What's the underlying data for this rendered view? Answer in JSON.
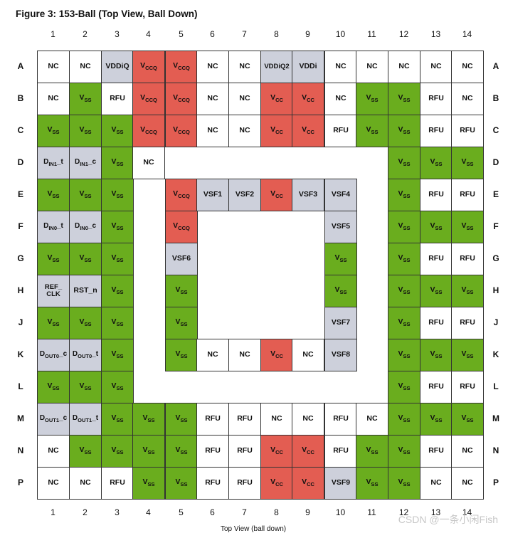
{
  "title": "Figure 3: 153-Ball (Top View, Ball Down)",
  "columns": [
    "1",
    "2",
    "3",
    "4",
    "5",
    "6",
    "7",
    "8",
    "9",
    "10",
    "11",
    "12",
    "13",
    "14"
  ],
  "rows": [
    "A",
    "B",
    "C",
    "D",
    "E",
    "F",
    "G",
    "H",
    "J",
    "K",
    "L",
    "M",
    "N",
    "P"
  ],
  "footer": "Top View (ball down)",
  "watermark": "CSDN @一条小闲Fish",
  "colors": {
    "green": "#6aad1e",
    "red": "#e35d52",
    "gray": "#cdd0db",
    "white": "#ffffff"
  },
  "grid": [
    [
      {
        "t": "w",
        "l": "NC"
      },
      {
        "t": "w",
        "l": "NC"
      },
      {
        "t": "g",
        "l": "VDDiQ"
      },
      {
        "t": "r",
        "b": "V",
        "s": "CCQ"
      },
      {
        "t": "r",
        "b": "V",
        "s": "CCQ"
      },
      {
        "t": "w",
        "l": "NC"
      },
      {
        "t": "w",
        "l": "NC"
      },
      {
        "t": "g",
        "l": "VDDiQ2"
      },
      {
        "t": "g",
        "l": "VDDi"
      },
      {
        "t": "w",
        "l": "NC"
      },
      {
        "t": "w",
        "l": "NC"
      },
      {
        "t": "w",
        "l": "NC"
      },
      {
        "t": "w",
        "l": "NC"
      },
      {
        "t": "w",
        "l": "NC"
      }
    ],
    [
      {
        "t": "w",
        "l": "NC"
      },
      {
        "t": "G",
        "b": "V",
        "s": "SS"
      },
      {
        "t": "w",
        "l": "RFU"
      },
      {
        "t": "r",
        "b": "V",
        "s": "CCQ"
      },
      {
        "t": "r",
        "b": "V",
        "s": "CCQ"
      },
      {
        "t": "w",
        "l": "NC"
      },
      {
        "t": "w",
        "l": "NC"
      },
      {
        "t": "r",
        "b": "V",
        "s": "CC"
      },
      {
        "t": "r",
        "b": "V",
        "s": "CC"
      },
      {
        "t": "w",
        "l": "NC"
      },
      {
        "t": "G",
        "b": "V",
        "s": "SS"
      },
      {
        "t": "G",
        "b": "V",
        "s": "SS"
      },
      {
        "t": "w",
        "l": "RFU"
      },
      {
        "t": "w",
        "l": "NC"
      }
    ],
    [
      {
        "t": "G",
        "b": "V",
        "s": "SS"
      },
      {
        "t": "G",
        "b": "V",
        "s": "SS"
      },
      {
        "t": "G",
        "b": "V",
        "s": "SS"
      },
      {
        "t": "r",
        "b": "V",
        "s": "CCQ"
      },
      {
        "t": "r",
        "b": "V",
        "s": "CCQ"
      },
      {
        "t": "w",
        "l": "NC"
      },
      {
        "t": "w",
        "l": "NC"
      },
      {
        "t": "r",
        "b": "V",
        "s": "CC"
      },
      {
        "t": "r",
        "b": "V",
        "s": "CC"
      },
      {
        "t": "w",
        "l": "RFU"
      },
      {
        "t": "G",
        "b": "V",
        "s": "SS"
      },
      {
        "t": "G",
        "b": "V",
        "s": "SS"
      },
      {
        "t": "w",
        "l": "RFU"
      },
      {
        "t": "w",
        "l": "RFU"
      }
    ],
    [
      {
        "t": "g",
        "b": "D",
        "s": "IN1",
        "e": "_t"
      },
      {
        "t": "g",
        "b": "D",
        "s": "IN1",
        "e": "_c"
      },
      {
        "t": "G",
        "b": "V",
        "s": "SS"
      },
      {
        "t": "w",
        "l": "NC"
      },
      null,
      null,
      null,
      null,
      null,
      null,
      null,
      {
        "t": "G",
        "b": "V",
        "s": "SS"
      },
      {
        "t": "G",
        "b": "V",
        "s": "SS"
      },
      {
        "t": "G",
        "b": "V",
        "s": "SS"
      }
    ],
    [
      {
        "t": "G",
        "b": "V",
        "s": "SS"
      },
      {
        "t": "G",
        "b": "V",
        "s": "SS"
      },
      {
        "t": "G",
        "b": "V",
        "s": "SS"
      },
      null,
      {
        "t": "r",
        "b": "V",
        "s": "CCQ"
      },
      {
        "t": "g",
        "l": "VSF1"
      },
      {
        "t": "g",
        "l": "VSF2"
      },
      {
        "t": "r",
        "b": "V",
        "s": "CC"
      },
      {
        "t": "g",
        "l": "VSF3"
      },
      {
        "t": "g",
        "l": "VSF4"
      },
      null,
      {
        "t": "G",
        "b": "V",
        "s": "SS"
      },
      {
        "t": "w",
        "l": "RFU"
      },
      {
        "t": "w",
        "l": "RFU"
      }
    ],
    [
      {
        "t": "g",
        "b": "D",
        "s": "IN0",
        "e": "_t"
      },
      {
        "t": "g",
        "b": "D",
        "s": "IN0",
        "e": "_c"
      },
      {
        "t": "G",
        "b": "V",
        "s": "SS"
      },
      null,
      {
        "t": "r",
        "b": "V",
        "s": "CCQ"
      },
      null,
      null,
      null,
      null,
      {
        "t": "g",
        "l": "VSF5"
      },
      null,
      {
        "t": "G",
        "b": "V",
        "s": "SS"
      },
      {
        "t": "G",
        "b": "V",
        "s": "SS"
      },
      {
        "t": "G",
        "b": "V",
        "s": "SS"
      }
    ],
    [
      {
        "t": "G",
        "b": "V",
        "s": "SS"
      },
      {
        "t": "G",
        "b": "V",
        "s": "SS"
      },
      {
        "t": "G",
        "b": "V",
        "s": "SS"
      },
      null,
      {
        "t": "g",
        "l": "VSF6"
      },
      null,
      null,
      null,
      null,
      {
        "t": "G",
        "b": "V",
        "s": "SS"
      },
      null,
      {
        "t": "G",
        "b": "V",
        "s": "SS"
      },
      {
        "t": "w",
        "l": "RFU"
      },
      {
        "t": "w",
        "l": "RFU"
      }
    ],
    [
      {
        "t": "g",
        "l": "REF_ CLK",
        "m": true
      },
      {
        "t": "g",
        "l": "RST_n"
      },
      {
        "t": "G",
        "b": "V",
        "s": "SS"
      },
      null,
      {
        "t": "G",
        "b": "V",
        "s": "SS"
      },
      null,
      null,
      null,
      null,
      {
        "t": "G",
        "b": "V",
        "s": "SS"
      },
      null,
      {
        "t": "G",
        "b": "V",
        "s": "SS"
      },
      {
        "t": "G",
        "b": "V",
        "s": "SS"
      },
      {
        "t": "G",
        "b": "V",
        "s": "SS"
      }
    ],
    [
      {
        "t": "G",
        "b": "V",
        "s": "SS"
      },
      {
        "t": "G",
        "b": "V",
        "s": "SS"
      },
      {
        "t": "G",
        "b": "V",
        "s": "SS"
      },
      null,
      {
        "t": "G",
        "b": "V",
        "s": "SS"
      },
      null,
      null,
      null,
      null,
      {
        "t": "g",
        "l": "VSF7"
      },
      null,
      {
        "t": "G",
        "b": "V",
        "s": "SS"
      },
      {
        "t": "w",
        "l": "RFU"
      },
      {
        "t": "w",
        "l": "RFU"
      }
    ],
    [
      {
        "t": "g",
        "b": "D",
        "s": "OUT0",
        "e": "_c"
      },
      {
        "t": "g",
        "b": "D",
        "s": "OUT0",
        "e": "_t"
      },
      {
        "t": "G",
        "b": "V",
        "s": "SS"
      },
      null,
      {
        "t": "G",
        "b": "V",
        "s": "SS"
      },
      {
        "t": "w",
        "l": "NC"
      },
      {
        "t": "w",
        "l": "NC"
      },
      {
        "t": "r",
        "b": "V",
        "s": "CC"
      },
      {
        "t": "w",
        "l": "NC"
      },
      {
        "t": "g",
        "l": "VSF8"
      },
      null,
      {
        "t": "G",
        "b": "V",
        "s": "SS"
      },
      {
        "t": "G",
        "b": "V",
        "s": "SS"
      },
      {
        "t": "G",
        "b": "V",
        "s": "SS"
      }
    ],
    [
      {
        "t": "G",
        "b": "V",
        "s": "SS"
      },
      {
        "t": "G",
        "b": "V",
        "s": "SS"
      },
      {
        "t": "G",
        "b": "V",
        "s": "SS"
      },
      null,
      null,
      null,
      null,
      null,
      null,
      null,
      null,
      {
        "t": "G",
        "b": "V",
        "s": "SS"
      },
      {
        "t": "w",
        "l": "RFU"
      },
      {
        "t": "w",
        "l": "RFU"
      }
    ],
    [
      {
        "t": "g",
        "b": "D",
        "s": "OUT1",
        "e": "_c"
      },
      {
        "t": "g",
        "b": "D",
        "s": "OUT1",
        "e": "_t"
      },
      {
        "t": "G",
        "b": "V",
        "s": "SS"
      },
      {
        "t": "G",
        "b": "V",
        "s": "SS"
      },
      {
        "t": "G",
        "b": "V",
        "s": "SS"
      },
      {
        "t": "w",
        "l": "RFU"
      },
      {
        "t": "w",
        "l": "RFU"
      },
      {
        "t": "w",
        "l": "NC"
      },
      {
        "t": "w",
        "l": "NC"
      },
      {
        "t": "w",
        "l": "RFU"
      },
      {
        "t": "w",
        "l": "NC"
      },
      {
        "t": "G",
        "b": "V",
        "s": "SS"
      },
      {
        "t": "G",
        "b": "V",
        "s": "SS"
      },
      {
        "t": "G",
        "b": "V",
        "s": "SS"
      }
    ],
    [
      {
        "t": "w",
        "l": "NC"
      },
      {
        "t": "G",
        "b": "V",
        "s": "SS"
      },
      {
        "t": "G",
        "b": "V",
        "s": "SS"
      },
      {
        "t": "G",
        "b": "V",
        "s": "SS"
      },
      {
        "t": "G",
        "b": "V",
        "s": "SS"
      },
      {
        "t": "w",
        "l": "RFU"
      },
      {
        "t": "w",
        "l": "RFU"
      },
      {
        "t": "r",
        "b": "V",
        "s": "CC"
      },
      {
        "t": "r",
        "b": "V",
        "s": "CC"
      },
      {
        "t": "w",
        "l": "RFU"
      },
      {
        "t": "G",
        "b": "V",
        "s": "SS"
      },
      {
        "t": "G",
        "b": "V",
        "s": "SS"
      },
      {
        "t": "w",
        "l": "RFU"
      },
      {
        "t": "w",
        "l": "NC"
      }
    ],
    [
      {
        "t": "w",
        "l": "NC"
      },
      {
        "t": "w",
        "l": "NC"
      },
      {
        "t": "w",
        "l": "RFU"
      },
      {
        "t": "G",
        "b": "V",
        "s": "SS"
      },
      {
        "t": "G",
        "b": "V",
        "s": "SS"
      },
      {
        "t": "w",
        "l": "RFU"
      },
      {
        "t": "w",
        "l": "RFU"
      },
      {
        "t": "r",
        "b": "V",
        "s": "CC"
      },
      {
        "t": "r",
        "b": "V",
        "s": "CC"
      },
      {
        "t": "g",
        "l": "VSF9"
      },
      {
        "t": "G",
        "b": "V",
        "s": "SS"
      },
      {
        "t": "G",
        "b": "V",
        "s": "SS"
      },
      {
        "t": "w",
        "l": "NC"
      },
      {
        "t": "w",
        "l": "NC"
      }
    ]
  ]
}
